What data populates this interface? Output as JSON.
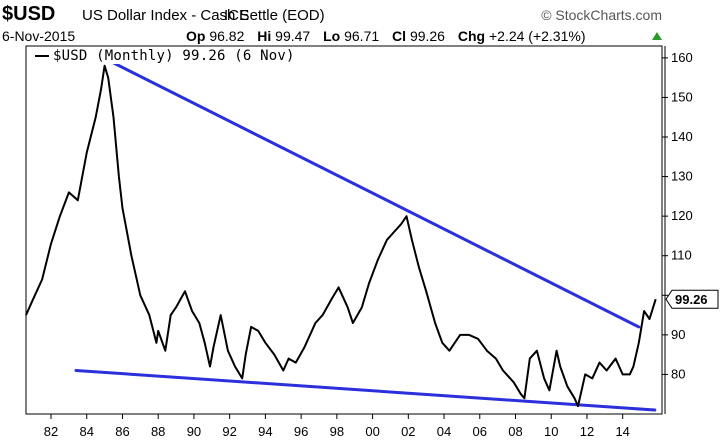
{
  "header": {
    "symbol": "$USD",
    "title": "US Dollar Index - Cash Settle (EOD)",
    "exchange": "ICE",
    "brand": "© StockCharts.com",
    "date": "6-Nov-2015",
    "stats": [
      {
        "label": "Op",
        "value": "96.82"
      },
      {
        "label": "Hi",
        "value": "99.47"
      },
      {
        "label": "Lo",
        "value": "96.71"
      },
      {
        "label": "Cl",
        "value": "99.26"
      },
      {
        "label": "Chg",
        "value": "+2.24 (+2.31%)"
      }
    ],
    "up_color": "#2a9a2a"
  },
  "legend": {
    "label": "$USD (Monthly) 99.26 (6 Nov)"
  },
  "last_value_tag": "99.26",
  "chart_data": {
    "type": "line",
    "title": "US Dollar Index - Cash Settle (EOD)",
    "series": [
      {
        "name": "$USD (Monthly)",
        "color": "#000000",
        "x": [
          1980.6,
          1981.0,
          1981.5,
          1982.0,
          1982.5,
          1983.0,
          1983.5,
          1984.0,
          1984.5,
          1984.8,
          1985.0,
          1985.2,
          1985.5,
          1985.8,
          1986.0,
          1986.5,
          1987.0,
          1987.5,
          1987.9,
          1988.0,
          1988.4,
          1988.7,
          1989.0,
          1989.5,
          1989.9,
          1990.3,
          1990.6,
          1990.9,
          1991.1,
          1991.5,
          1991.9,
          1992.3,
          1992.7,
          1992.9,
          1993.2,
          1993.6,
          1994.0,
          1994.5,
          1995.0,
          1995.3,
          1995.7,
          1996.2,
          1996.8,
          1997.2,
          1997.7,
          1998.1,
          1998.6,
          1998.9,
          1999.4,
          1999.8,
          2000.3,
          2000.8,
          2001.2,
          2001.6,
          2001.9,
          2002.2,
          2002.6,
          2003.0,
          2003.5,
          2003.9,
          2004.3,
          2004.9,
          2005.4,
          2005.9,
          2006.4,
          2006.9,
          2007.3,
          2007.9,
          2008.3,
          2008.5,
          2008.8,
          2009.2,
          2009.6,
          2009.9,
          2010.3,
          2010.5,
          2010.9,
          2011.3,
          2011.5,
          2011.9,
          2012.3,
          2012.7,
          2013.1,
          2013.6,
          2014.0,
          2014.4,
          2014.6,
          2014.9,
          2015.2,
          2015.5,
          2015.85
        ],
        "values": [
          95,
          99,
          104,
          113,
          120,
          126,
          124,
          136,
          145,
          152,
          158,
          155,
          145,
          130,
          122,
          110,
          100,
          95,
          88,
          91,
          86,
          95,
          97,
          101,
          96,
          93,
          88,
          82,
          87,
          95,
          86,
          82,
          79,
          85,
          92,
          91,
          88,
          85,
          81,
          84,
          83,
          87,
          93,
          95,
          99,
          102,
          97,
          93,
          97,
          103,
          109,
          114,
          116,
          118,
          120,
          114,
          107,
          101,
          93,
          88,
          86,
          90,
          90,
          89,
          86,
          84,
          81,
          78,
          75,
          74,
          84,
          86,
          79,
          76,
          86,
          82,
          77,
          74,
          72,
          80,
          79,
          83,
          81,
          84,
          80,
          80,
          82,
          88,
          96,
          94,
          99
        ]
      }
    ],
    "trendlines": [
      {
        "name": "upper trendline",
        "color": "#2b2fdc",
        "x": [
          1984.5,
          2014.9
        ],
        "values": [
          161,
          92
        ]
      },
      {
        "name": "lower trendline",
        "color": "#2b2fdc",
        "x": [
          1983.4,
          2015.8
        ],
        "values": [
          81,
          71
        ]
      }
    ],
    "x_ticks": [
      "82",
      "84",
      "86",
      "88",
      "90",
      "92",
      "94",
      "96",
      "98",
      "00",
      "02",
      "04",
      "06",
      "08",
      "10",
      "12",
      "14"
    ],
    "x_tick_years": [
      1982,
      1984,
      1986,
      1988,
      1990,
      1992,
      1994,
      1996,
      1998,
      2000,
      2002,
      2004,
      2006,
      2008,
      2010,
      2012,
      2014
    ],
    "y_ticks": [
      80,
      90,
      100,
      110,
      120,
      130,
      140,
      150,
      160
    ],
    "xlim": [
      1980.6,
      2016.2
    ],
    "ylim": [
      70,
      163
    ],
    "grid": false,
    "legend_position": "top-left"
  }
}
